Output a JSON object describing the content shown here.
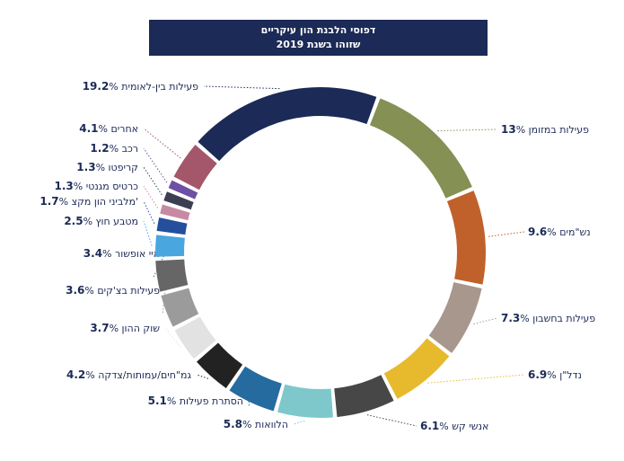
{
  "chart_data": {
    "type": "pie",
    "title": "דפוסי הלבנת הון עיקריים",
    "subtitle": "שזוהו בשנת 2019",
    "slices": [
      {
        "label": "פעילות במזומן",
        "value": 13,
        "display": "13%",
        "color": "#849054"
      },
      {
        "label": "נש\"מים",
        "value": 9.6,
        "display": "9.6%",
        "color": "#c0612b"
      },
      {
        "label": "פעילות בחשבון",
        "value": 7.3,
        "display": "7.3%",
        "color": "#a8978d"
      },
      {
        "label": "נדל\"ן",
        "value": 6.9,
        "display": "6.9%",
        "color": "#e7b92d"
      },
      {
        "label": "אנשי קש",
        "value": 6.1,
        "display": "6.1%",
        "color": "#474747"
      },
      {
        "label": "הלוואות",
        "value": 5.8,
        "display": "5.8%",
        "color": "#7ec8cb"
      },
      {
        "label": "הסתרת פעילות",
        "value": 5.1,
        "display": "5.1%",
        "color": "#256b9f"
      },
      {
        "label": "גמ\"חים/עמותות/צדקה",
        "value": 4.2,
        "display": "4.2%",
        "color": "#222222"
      },
      {
        "label": "שוק ההון",
        "value": 3.7,
        "display": "3.7%",
        "color": "#e2e2e2"
      },
      {
        "label": "פעילות בצ'קים",
        "value": 3.6,
        "display": "3.6%",
        "color": "#9b9b9b"
      },
      {
        "label": "איי אופשור",
        "value": 3.4,
        "display": "3.4%",
        "color": "#666666"
      },
      {
        "label": "מטבע חוץ",
        "value": 2.5,
        "display": "2.5%",
        "color": "#49a6df"
      },
      {
        "label": "מלביני הון מקצ'",
        "value": 1.7,
        "display": "1.7%",
        "color": "#244f9c"
      },
      {
        "label": "כרטיס מגנטי",
        "value": 1.3,
        "display": "1.3%",
        "color": "#c78aa4"
      },
      {
        "label": "קריפטו",
        "value": 1.3,
        "display": "1.3%",
        "color": "#3c3f52"
      },
      {
        "label": "רכב",
        "value": 1.2,
        "display": "1.2%",
        "color": "#6e4fa3"
      },
      {
        "label": "אחרים",
        "value": 4.1,
        "display": "4.1%",
        "color": "#a4566b"
      },
      {
        "label": "פעילות בין-לאומית",
        "value": 19.2,
        "display": "19.2%",
        "color": "#1b2a56"
      }
    ]
  }
}
